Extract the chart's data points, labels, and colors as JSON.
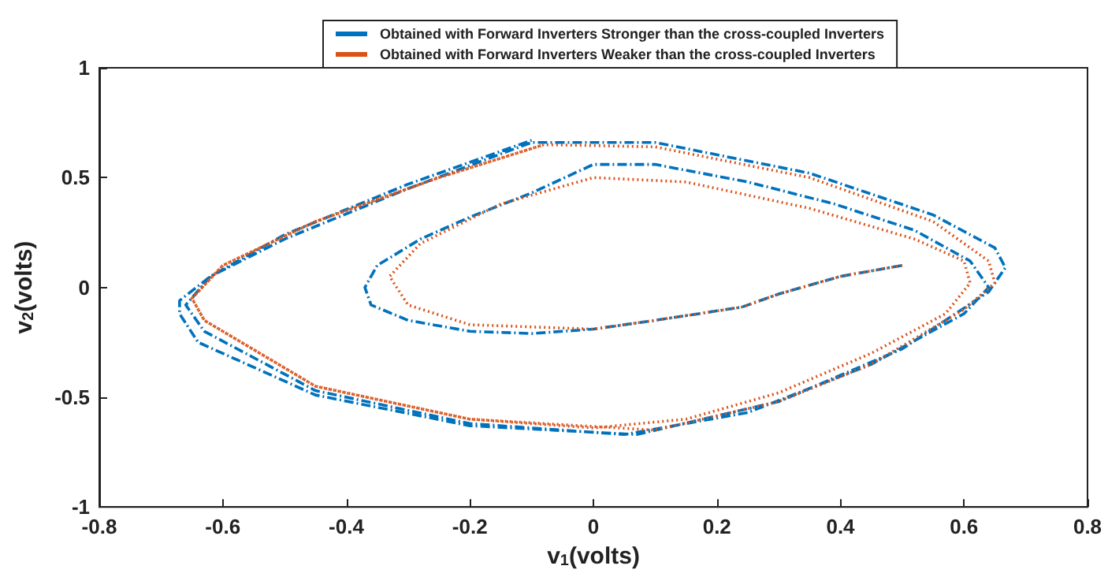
{
  "chart_data": {
    "type": "line",
    "xlabel": "v$_{1}$(volts)",
    "ylabel": "v$_{2}$(volts)",
    "xlim": [
      -0.8,
      0.8
    ],
    "xticks": [
      -0.8,
      -0.6,
      -0.4,
      -0.2,
      0,
      0.2,
      0.4,
      0.6,
      0.8
    ],
    "ylim": [
      -1,
      1
    ],
    "yticks": [
      -1,
      -0.5,
      0,
      0.5,
      1
    ],
    "grid": false,
    "legend": "top",
    "marker": "none",
    "series": [
      {
        "name": "Obtained with Forward Inverters Stronger than the cross-coupled Inverters",
        "color": "#0072bd",
        "line_style": "dashed",
        "x": [
          0.5,
          0.4,
          0.3,
          0.24,
          0.1,
          0,
          -0.1,
          -0.2,
          -0.3,
          -0.36,
          -0.37,
          -0.35,
          -0.28,
          -0.2,
          -0.1,
          0,
          0.1,
          0.25,
          0.39,
          0.52,
          0.61,
          0.64,
          0.6,
          0.45,
          0.25,
          0.05,
          -0.2,
          -0.45,
          -0.63,
          -0.66,
          -0.62,
          -0.5,
          -0.3,
          -0.1,
          0.1,
          0.35,
          0.55,
          0.65,
          0.667,
          0.64,
          0.5,
          0.3,
          0.07,
          -0.2,
          -0.45,
          -0.64,
          -0.67,
          -0.67,
          -0.62,
          -0.5,
          -0.3,
          -0.1
        ],
        "values": [
          0.1,
          0.05,
          -0.03,
          -0.09,
          -0.15,
          -0.19,
          -0.21,
          -0.2,
          -0.15,
          -0.08,
          0,
          0.1,
          0.22,
          0.32,
          0.43,
          0.56,
          0.56,
          0.48,
          0.38,
          0.26,
          0.12,
          0,
          -0.12,
          -0.35,
          -0.57,
          -0.67,
          -0.62,
          -0.47,
          -0.2,
          -0.08,
          0.05,
          0.22,
          0.45,
          0.66,
          0.66,
          0.52,
          0.33,
          0.18,
          0.09,
          -0.02,
          -0.28,
          -0.52,
          -0.67,
          -0.63,
          -0.49,
          -0.25,
          -0.12,
          -0.06,
          0.05,
          0.24,
          0.47,
          0.67
        ]
      },
      {
        "name": "Obtained with Forward Inverters Weaker than the cross-coupled Inverters",
        "color": "#d95319",
        "line_style": "dotted",
        "x": [
          0.5,
          0.4,
          0.3,
          0.24,
          0.1,
          0,
          -0.2,
          -0.3,
          -0.33,
          -0.28,
          -0.15,
          0,
          0.15,
          0.35,
          0.52,
          0.6,
          0.61,
          0.57,
          0.45,
          0.3,
          0.15,
          0,
          -0.2,
          -0.45,
          -0.63,
          -0.65,
          -0.6,
          -0.45,
          -0.25,
          -0.08,
          0.1,
          0.35,
          0.55,
          0.64,
          0.65,
          0.6,
          0.45,
          0.3,
          0.1,
          -0.2,
          -0.45,
          -0.63,
          -0.65,
          -0.6,
          -0.45,
          -0.25,
          -0.08
        ],
        "values": [
          0.1,
          0.05,
          -0.03,
          -0.09,
          -0.15,
          -0.19,
          -0.17,
          -0.08,
          0.05,
          0.2,
          0.38,
          0.5,
          0.48,
          0.36,
          0.22,
          0.12,
          0.02,
          -0.12,
          -0.3,
          -0.48,
          -0.6,
          -0.64,
          -0.6,
          -0.45,
          -0.15,
          -0.05,
          0.1,
          0.3,
          0.5,
          0.65,
          0.64,
          0.5,
          0.3,
          0.12,
          0.02,
          -0.1,
          -0.35,
          -0.52,
          -0.65,
          -0.6,
          -0.45,
          -0.15,
          -0.05,
          0.1,
          0.3,
          0.5,
          0.65
        ]
      }
    ]
  }
}
